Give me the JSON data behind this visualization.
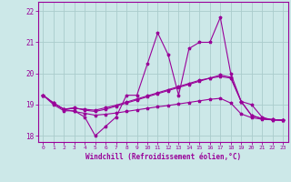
{
  "xlabel": "Windchill (Refroidissement éolien,°C)",
  "x": [
    0,
    1,
    2,
    3,
    4,
    5,
    6,
    7,
    8,
    9,
    10,
    11,
    12,
    13,
    14,
    15,
    16,
    17,
    18,
    19,
    20,
    21,
    22,
    23
  ],
  "line1": [
    19.3,
    19.0,
    18.8,
    18.8,
    18.6,
    18.0,
    18.3,
    18.6,
    19.3,
    19.3,
    20.3,
    21.3,
    20.6,
    19.3,
    20.8,
    21.0,
    21.0,
    21.8,
    20.0,
    19.1,
    19.0,
    18.6,
    18.5,
    18.5
  ],
  "line2": [
    19.3,
    19.05,
    18.85,
    18.9,
    18.82,
    18.78,
    18.85,
    18.95,
    19.05,
    19.15,
    19.25,
    19.35,
    19.45,
    19.55,
    19.65,
    19.75,
    19.85,
    19.9,
    19.85,
    19.1,
    18.65,
    18.55,
    18.52,
    18.5
  ],
  "line3": [
    19.3,
    19.05,
    18.85,
    18.88,
    18.85,
    18.82,
    18.9,
    18.98,
    19.08,
    19.18,
    19.28,
    19.38,
    19.48,
    19.58,
    19.68,
    19.78,
    19.85,
    19.95,
    19.88,
    19.1,
    18.65,
    18.55,
    18.52,
    18.5
  ],
  "line4": [
    19.3,
    19.05,
    18.85,
    18.78,
    18.72,
    18.66,
    18.69,
    18.73,
    18.78,
    18.83,
    18.88,
    18.93,
    18.97,
    19.02,
    19.07,
    19.12,
    19.17,
    19.2,
    19.05,
    18.7,
    18.58,
    18.53,
    18.51,
    18.5
  ],
  "bg_color": "#cce8e8",
  "grid_color": "#aacccc",
  "line_color": "#990099",
  "ylim": [
    17.8,
    22.3
  ],
  "xlim": [
    -0.5,
    23.5
  ]
}
